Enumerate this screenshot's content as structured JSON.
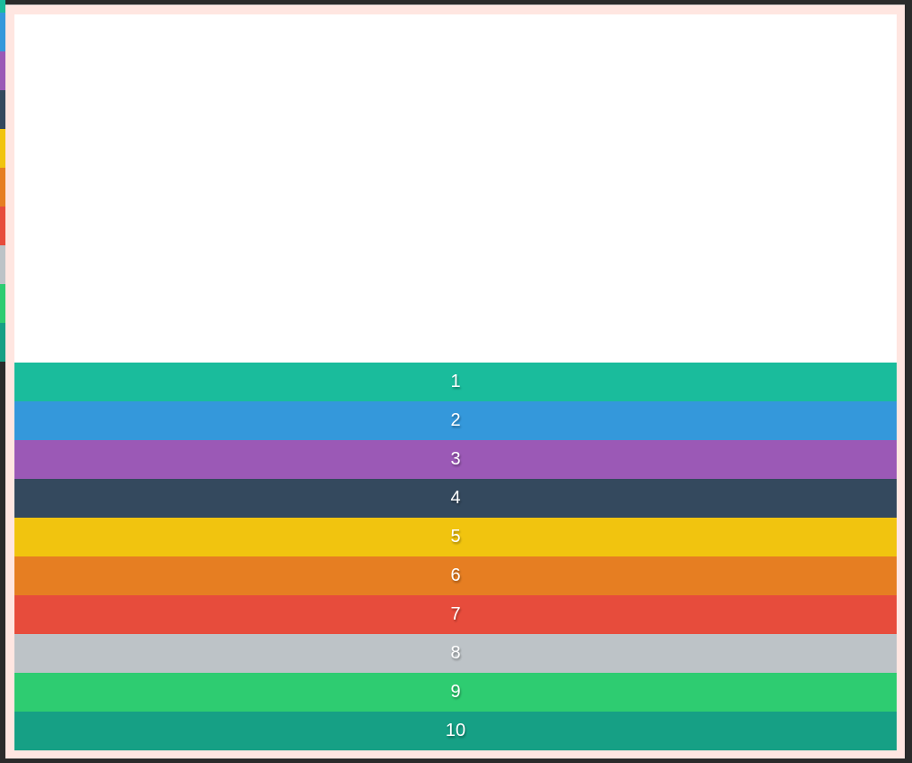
{
  "items": [
    {
      "label": "1",
      "color": "#1abc9c"
    },
    {
      "label": "2",
      "color": "#3498db"
    },
    {
      "label": "3",
      "color": "#9b59b6"
    },
    {
      "label": "4",
      "color": "#34495e"
    },
    {
      "label": "5",
      "color": "#f1c40f"
    },
    {
      "label": "6",
      "color": "#e67e22"
    },
    {
      "label": "7",
      "color": "#e74c3c"
    },
    {
      "label": "8",
      "color": "#bdc3c7"
    },
    {
      "label": "9",
      "color": "#2ecc71"
    },
    {
      "label": "10",
      "color": "#16a085"
    }
  ],
  "frame": {
    "border_color": "#ffe6e1",
    "background": "#ffffff"
  }
}
